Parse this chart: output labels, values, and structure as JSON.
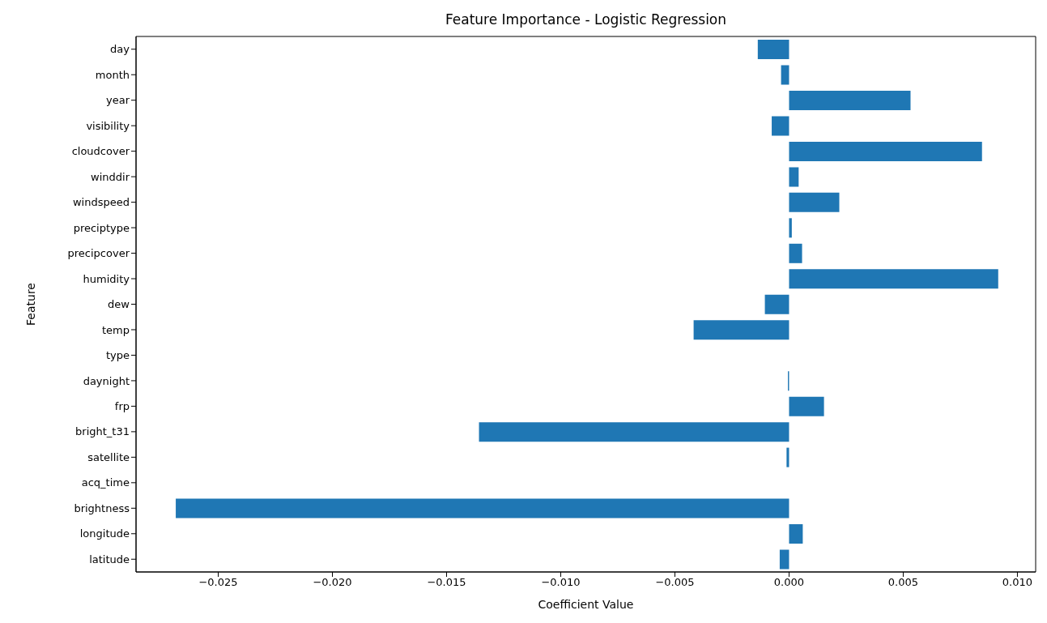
{
  "chart_data": {
    "type": "bar",
    "orientation": "horizontal",
    "title": "Feature Importance - Logistic Regression",
    "xlabel": "Coefficient Value",
    "ylabel": "Feature",
    "categories": [
      "day",
      "month",
      "year",
      "visibility",
      "cloudcover",
      "winddir",
      "windspeed",
      "preciptype",
      "precipcover",
      "humidity",
      "dew",
      "temp",
      "type",
      "daynight",
      "frp",
      "bright_t31",
      "satellite",
      "acq_time",
      "brightness",
      "longitude",
      "latitude"
    ],
    "values": [
      -0.00137,
      -0.00035,
      0.00532,
      -0.00076,
      0.00845,
      0.00042,
      0.0022,
      0.00012,
      0.00057,
      0.00916,
      -0.00106,
      -0.00418,
      0,
      -5e-05,
      0.00153,
      -0.01358,
      -0.00011,
      0,
      -0.02686,
      0.0006,
      -0.00041
    ],
    "color": "#1f77b4",
    "xlim": [
      -0.0286,
      0.0108
    ],
    "xticks": [
      {
        "value": -0.025,
        "label": "−0.025"
      },
      {
        "value": -0.02,
        "label": "−0.020"
      },
      {
        "value": -0.015,
        "label": "−0.015"
      },
      {
        "value": -0.01,
        "label": "−0.010"
      },
      {
        "value": -0.005,
        "label": "−0.005"
      },
      {
        "value": 0,
        "label": "0.000"
      },
      {
        "value": 0.005,
        "label": "0.005"
      },
      {
        "value": 0.01,
        "label": "0.010"
      }
    ],
    "grid": false,
    "legend": false
  }
}
